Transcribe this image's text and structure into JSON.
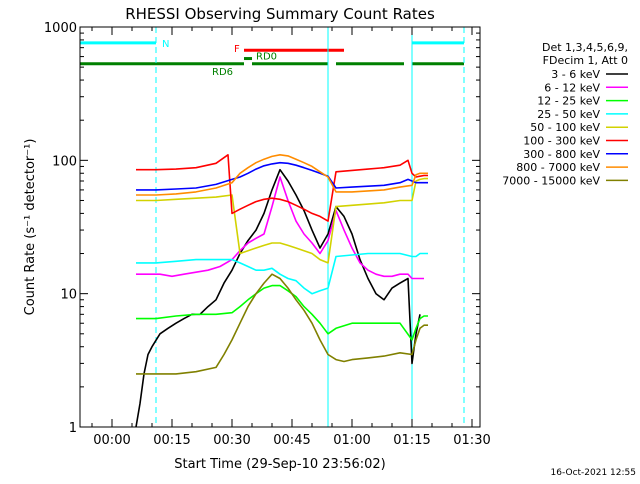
{
  "chart_data": {
    "type": "line",
    "title": "RHESSI Observing Summary Count Rates",
    "xlabel": "Start Time (29-Sep-10 23:56:02)",
    "ylabel": "Count Rate (s⁻¹ detector⁻¹)",
    "y_scale": "log",
    "ylim": [
      1,
      1000
    ],
    "xlim_minutes": [
      -4,
      96
    ],
    "x_ticks": [
      {
        "label": "00:00",
        "minute": 4
      },
      {
        "label": "00:15",
        "minute": 19
      },
      {
        "label": "00:30",
        "minute": 34
      },
      {
        "label": "00:45",
        "minute": 49
      },
      {
        "label": "01:00",
        "minute": 64
      },
      {
        "label": "01:15",
        "minute": 79
      },
      {
        "label": "01:30",
        "minute": 94
      }
    ],
    "y_ticks": [
      {
        "label": "1",
        "value": 1
      },
      {
        "label": "10",
        "value": 10
      },
      {
        "label": "100",
        "value": 100
      },
      {
        "label": "1000",
        "value": 1000
      }
    ],
    "legend_header": [
      "Det 1,3,4,5,6,9,",
      "FDecim 1, Att 0"
    ],
    "legend_position": "right",
    "timestamp": "16-Oct-2021 12:55",
    "flags": [
      {
        "label": "N",
        "color": "#00ffff",
        "segments": [
          [
            -4,
            15
          ],
          [
            79,
            92
          ]
        ],
        "level": 760
      },
      {
        "label": "F",
        "color": "#ff0000",
        "segments": [
          [
            37,
            62
          ]
        ],
        "level": 670
      },
      {
        "label": "RD0",
        "color": "#008000",
        "segments": [
          [
            37,
            39
          ]
        ],
        "level": 580
      },
      {
        "label": "RD6",
        "color": "#008000",
        "segments": [
          [
            -4,
            37
          ],
          [
            39,
            58
          ],
          [
            60,
            77
          ],
          [
            79,
            92
          ]
        ],
        "level": 530
      }
    ],
    "flag_labels": {
      "N": "N",
      "F": "F",
      "RD0": "RD0",
      "RD6": "RD6"
    },
    "vlines": [
      {
        "minute": -4,
        "color": "#00ffff",
        "style": "solid"
      },
      {
        "minute": 15,
        "color": "#00ffff",
        "style": "dashed"
      },
      {
        "minute": 58,
        "color": "#00ffff",
        "style": "solid"
      },
      {
        "minute": 79,
        "color": "#00ffff",
        "style": "solid"
      },
      {
        "minute": 92,
        "color": "#00ffff",
        "style": "dashed"
      }
    ],
    "series": [
      {
        "name": "3 - 6 keV",
        "color": "#000000",
        "x": [
          10,
          11,
          12,
          13,
          14,
          16,
          18,
          20,
          22,
          24,
          26,
          28,
          30,
          32,
          34,
          36,
          38,
          40,
          42,
          44,
          46,
          48,
          50,
          52,
          54,
          56,
          58,
          60,
          62,
          64,
          66,
          68,
          70,
          72,
          74,
          76,
          78,
          79,
          80,
          81
        ],
        "y": [
          1,
          1.5,
          2.5,
          3.5,
          4,
          5,
          5.5,
          6,
          6.5,
          7,
          7,
          8,
          9,
          12,
          15,
          20,
          25,
          30,
          40,
          60,
          85,
          70,
          55,
          42,
          30,
          22,
          28,
          45,
          38,
          28,
          18,
          13,
          10,
          9,
          11,
          12,
          13,
          3,
          5,
          7
        ]
      },
      {
        "name": "6 - 12 keV",
        "color": "#ff00ff",
        "x": [
          10,
          13,
          16,
          19,
          22,
          25,
          28,
          31,
          34,
          36,
          38,
          40,
          42,
          44,
          46,
          48,
          50,
          52,
          54,
          56,
          58,
          60,
          62,
          64,
          66,
          68,
          70,
          72,
          74,
          76,
          78,
          79,
          80,
          81,
          82
        ],
        "y": [
          14,
          14,
          14,
          13.5,
          14,
          14.5,
          15,
          16,
          18,
          21,
          24,
          26,
          28,
          45,
          75,
          50,
          35,
          28,
          24,
          20,
          25,
          42,
          30,
          22,
          17,
          15,
          14,
          13.5,
          13.5,
          14,
          14,
          13,
          13,
          13,
          13
        ]
      },
      {
        "name": "12 - 25 keV",
        "color": "#00ff00",
        "x": [
          10,
          15,
          20,
          25,
          30,
          34,
          36,
          38,
          40,
          42,
          44,
          46,
          48,
          50,
          52,
          54,
          56,
          58,
          60,
          64,
          68,
          72,
          76,
          79,
          80,
          81,
          82,
          83
        ],
        "y": [
          6.5,
          6.5,
          6.8,
          7,
          7,
          7.2,
          8,
          9,
          10,
          11,
          11.5,
          11.5,
          10.5,
          9.5,
          8,
          7,
          6,
          5,
          5.5,
          6,
          6,
          6,
          6,
          4.5,
          5.5,
          6.5,
          6.8,
          6.8
        ]
      },
      {
        "name": "25 - 50 keV",
        "color": "#00ffff",
        "x": [
          10,
          15,
          20,
          25,
          30,
          34,
          36,
          38,
          40,
          42,
          44,
          46,
          48,
          50,
          52,
          54,
          56,
          58,
          60,
          64,
          68,
          72,
          76,
          79,
          80,
          81,
          82,
          83
        ],
        "y": [
          17,
          17,
          17.5,
          18,
          18,
          18,
          17,
          16,
          15,
          15,
          15.5,
          14,
          13,
          12.5,
          11,
          10,
          10.5,
          11,
          19,
          19.5,
          20,
          20,
          20,
          19,
          19,
          20,
          20,
          20
        ]
      },
      {
        "name": "50 - 100 keV",
        "color": "#d2d200",
        "x": [
          10,
          15,
          20,
          25,
          30,
          34,
          36,
          38,
          40,
          42,
          44,
          46,
          48,
          50,
          52,
          54,
          56,
          58,
          60,
          64,
          68,
          72,
          76,
          79,
          80,
          81,
          82,
          83
        ],
        "y": [
          50,
          50,
          51,
          52,
          53,
          55,
          20,
          21,
          22,
          23,
          24,
          24,
          23,
          22,
          21,
          20,
          18,
          17,
          45,
          46,
          47,
          48,
          50,
          50,
          70,
          72,
          73,
          73
        ]
      },
      {
        "name": "100 - 300 keV",
        "color": "#ff0000",
        "x": [
          10,
          15,
          20,
          25,
          30,
          33,
          34,
          36,
          38,
          40,
          42,
          44,
          46,
          48,
          50,
          52,
          54,
          56,
          58,
          60,
          64,
          68,
          72,
          76,
          78,
          79,
          80,
          81,
          82,
          83
        ],
        "y": [
          85,
          85,
          86,
          88,
          95,
          110,
          40,
          43,
          46,
          49,
          51,
          52,
          51,
          49,
          46,
          43,
          40,
          38,
          35,
          82,
          84,
          86,
          88,
          92,
          100,
          80,
          75,
          76,
          77,
          77
        ]
      },
      {
        "name": "300 - 800 keV",
        "color": "#0000ff",
        "x": [
          10,
          15,
          20,
          25,
          30,
          34,
          36,
          38,
          40,
          42,
          44,
          46,
          48,
          50,
          52,
          54,
          56,
          58,
          60,
          64,
          68,
          72,
          76,
          78,
          79,
          80,
          81,
          82,
          83
        ],
        "y": [
          60,
          60,
          61,
          62,
          66,
          72,
          75,
          80,
          86,
          91,
          94,
          96,
          95,
          92,
          88,
          84,
          80,
          76,
          62,
          63,
          64,
          65,
          68,
          72,
          70,
          68,
          68,
          68,
          68
        ]
      },
      {
        "name": "800 - 7000 keV",
        "color": "#ff8c00",
        "x": [
          10,
          15,
          20,
          25,
          30,
          34,
          36,
          38,
          40,
          42,
          44,
          46,
          48,
          50,
          52,
          54,
          56,
          58,
          60,
          64,
          68,
          72,
          76,
          79,
          80,
          81,
          82,
          83
        ],
        "y": [
          55,
          55,
          56,
          58,
          62,
          68,
          80,
          88,
          96,
          102,
          107,
          110,
          108,
          102,
          96,
          90,
          82,
          75,
          58,
          58,
          59,
          60,
          63,
          65,
          78,
          80,
          80,
          80
        ]
      },
      {
        "name": "7000 - 15000 keV",
        "color": "#808000",
        "x": [
          10,
          15,
          20,
          25,
          30,
          32,
          34,
          36,
          38,
          40,
          42,
          44,
          46,
          48,
          50,
          52,
          54,
          56,
          58,
          60,
          62,
          64,
          68,
          72,
          76,
          79,
          80,
          81,
          82,
          83
        ],
        "y": [
          2.5,
          2.5,
          2.5,
          2.6,
          2.8,
          3.5,
          4.5,
          6,
          8,
          10,
          12,
          14,
          13,
          11,
          9,
          7.5,
          6,
          4.5,
          3.5,
          3.2,
          3.1,
          3.2,
          3.3,
          3.4,
          3.6,
          3.5,
          4.5,
          5.5,
          5.8,
          5.8
        ]
      }
    ]
  }
}
